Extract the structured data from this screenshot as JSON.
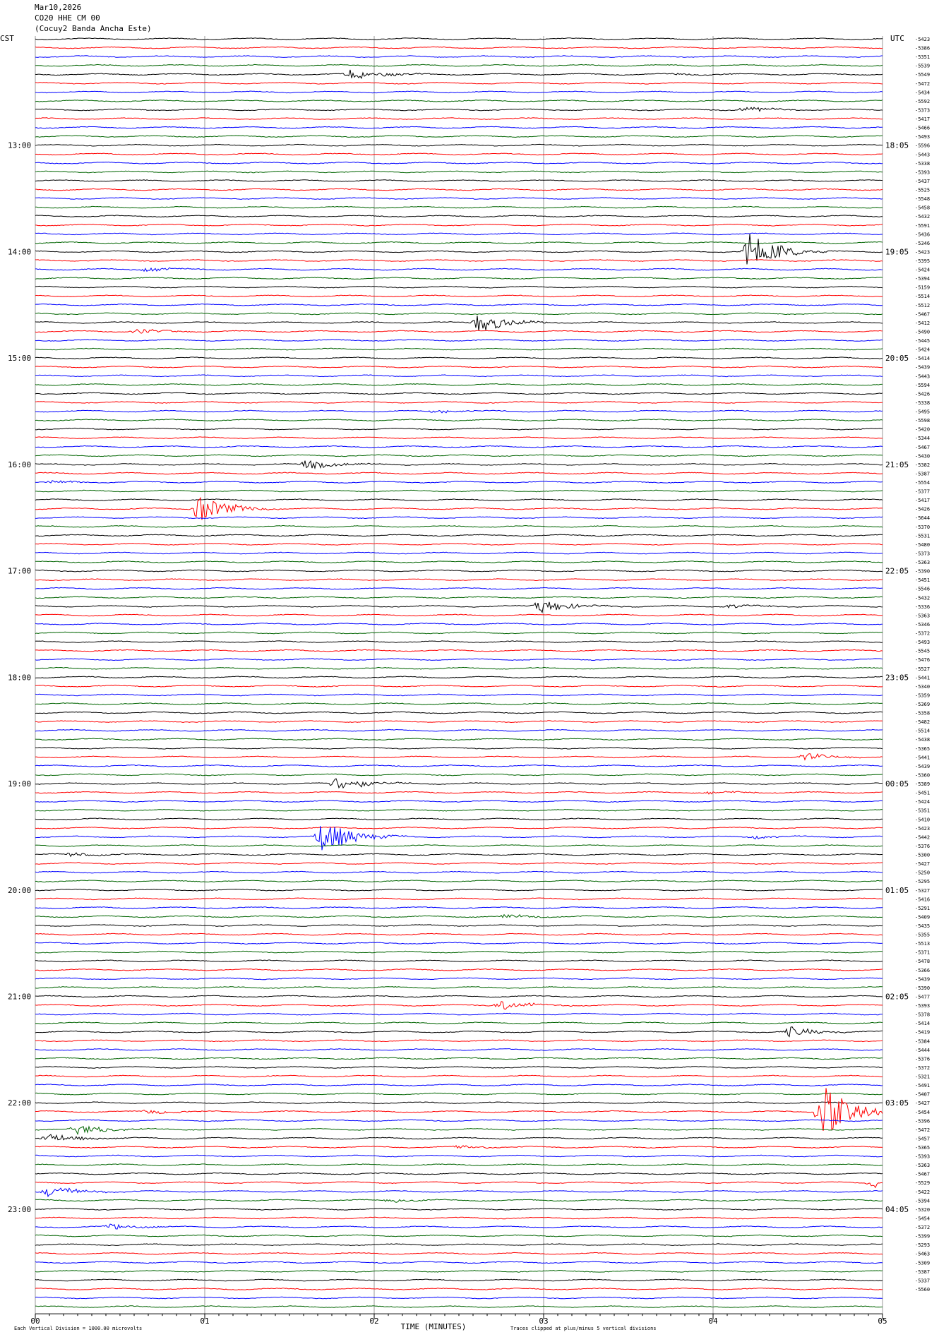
{
  "header": {
    "date": "Mar10,2026",
    "channel": "CO20 HHE CM 00",
    "station": "(Cocuy2 Banda Ancha Este)"
  },
  "footer": {
    "scale_note": "Each Vertical Division = 1000.00 microvolts",
    "xlabel": "TIME (MINUTES)",
    "clip_note": "Traces clipped at plus/minus 5 vertical divisions"
  },
  "chart_data": {
    "type": "line",
    "title": "CO20 HHE CM 00 (Cocuy2 Banda Ancha Este)",
    "xlabel": "TIME (MINUTES)",
    "xlim": [
      0,
      5
    ],
    "x_ticks": [
      "00",
      "01",
      "02",
      "03",
      "04",
      "05"
    ],
    "left_axis_label": "CST",
    "right_axis_label": "UTC",
    "trace_minutes": 5,
    "trace_count": 144,
    "trace_colors": [
      "#000000",
      "#ff0000",
      "#0000ff",
      "#006400"
    ],
    "left_time_labels": [
      {
        "label": "13:00",
        "trace": 12
      },
      {
        "label": "14:00",
        "trace": 24
      },
      {
        "label": "15:00",
        "trace": 36
      },
      {
        "label": "16:00",
        "trace": 48
      },
      {
        "label": "17:00",
        "trace": 60
      },
      {
        "label": "18:00",
        "trace": 72
      },
      {
        "label": "19:00",
        "trace": 84
      },
      {
        "label": "20:00",
        "trace": 96
      },
      {
        "label": "21:00",
        "trace": 108
      },
      {
        "label": "22:00",
        "trace": 120
      },
      {
        "label": "23:00",
        "trace": 132
      }
    ],
    "right_time_labels": [
      {
        "label": "18:05",
        "trace": 12
      },
      {
        "label": "19:05",
        "trace": 24
      },
      {
        "label": "20:05",
        "trace": 36
      },
      {
        "label": "21:05",
        "trace": 48
      },
      {
        "label": "22:05",
        "trace": 60
      },
      {
        "label": "23:05",
        "trace": 72
      },
      {
        "label": "00:05",
        "trace": 84
      },
      {
        "label": "01:05",
        "trace": 96
      },
      {
        "label": "02:05",
        "trace": 108
      },
      {
        "label": "03:05",
        "trace": 120
      },
      {
        "label": "04:05",
        "trace": 132
      }
    ],
    "trace_offsets": [
      "-5423",
      "-5386",
      "-5351",
      "-5539",
      "-5549",
      "-5472",
      "-5434",
      "-5592",
      "-5373",
      "-5417",
      "-5466",
      "-5493",
      "-5596",
      "-5443",
      "-5338",
      "-5393",
      "-5437",
      "-5525",
      "-5548",
      "-5458",
      "-5432",
      "-5591",
      "-5436",
      "-5346",
      "-5423",
      "-5395",
      "-5424",
      "-5394",
      "-5159",
      "-5514",
      "-5512",
      "-5467",
      "-5412",
      "-5490",
      "-5445",
      "-5424",
      "-5414",
      "-5439",
      "-5443",
      "-5594",
      "-5426",
      "-5338",
      "-5495",
      "-5598",
      "-5420",
      "-5344",
      "-5467",
      "-5430",
      "-5382",
      "-5387",
      "-5554",
      "-5377",
      "-5417",
      "-5426",
      "-5644",
      "-5370",
      "-5531",
      "-5480",
      "-5373",
      "-5363",
      "-5390",
      "-5451",
      "-5546",
      "-5432",
      "-5336",
      "-5363",
      "-5346",
      "-5372",
      "-5493",
      "-5545",
      "-5476",
      "-5527",
      "-5441",
      "-5340",
      "-5359",
      "-5369",
      "-5358",
      "-5482",
      "-5514",
      "-5438",
      "-5365",
      "-5441",
      "-5439",
      "-5360",
      "-5389",
      "-5451",
      "-5424",
      "-5351",
      "-5410",
      "-5423",
      "-5442",
      "-5376",
      "-5300",
      "-5427",
      "-5250",
      "-5295",
      "-5327",
      "-5416",
      "-5291",
      "-5409",
      "-5435",
      "-5355",
      "-5513",
      "-5371",
      "-5478",
      "-5366",
      "-5439",
      "-5390",
      "-5477",
      "-5393",
      "-5378",
      "-5414",
      "-5419",
      "-5384",
      "-5444",
      "-5376",
      "-5372",
      "-5321",
      "-5491",
      "-5407",
      "-5427",
      "-5454",
      "-5396",
      "-5472",
      "-5457",
      "-5365",
      "-5393",
      "-5363",
      "-5467",
      "-5529",
      "-5422",
      "-5394",
      "-5320",
      "-5454",
      "-5372",
      "-5399",
      "-5293",
      "-5463",
      "-5309",
      "-5387",
      "-5337",
      "-5560"
    ],
    "events": [
      {
        "trace": 4,
        "minute": 1.87,
        "amp": 0.6
      },
      {
        "trace": 4,
        "minute": 3.8,
        "amp": 0.15
      },
      {
        "trace": 8,
        "minute": 4.18,
        "amp": 0.35
      },
      {
        "trace": 24,
        "minute": 4.22,
        "amp": 2.2
      },
      {
        "trace": 26,
        "minute": 0.67,
        "amp": 0.25
      },
      {
        "trace": 32,
        "minute": 2.62,
        "amp": 1.1
      },
      {
        "trace": 33,
        "minute": 0.6,
        "amp": 0.3
      },
      {
        "trace": 42,
        "minute": 2.35,
        "amp": 0.2
      },
      {
        "trace": 48,
        "minute": 1.6,
        "amp": 0.5
      },
      {
        "trace": 50,
        "minute": 0.1,
        "amp": 0.2
      },
      {
        "trace": 53,
        "minute": 0.97,
        "amp": 1.5
      },
      {
        "trace": 64,
        "minute": 2.98,
        "amp": 0.8
      },
      {
        "trace": 64,
        "minute": 4.1,
        "amp": 0.2
      },
      {
        "trace": 81,
        "minute": 4.55,
        "amp": 0.4
      },
      {
        "trace": 84,
        "minute": 1.78,
        "amp": 0.8
      },
      {
        "trace": 85,
        "minute": 3.98,
        "amp": 0.2
      },
      {
        "trace": 90,
        "minute": 1.7,
        "amp": 1.9
      },
      {
        "trace": 90,
        "minute": 4.25,
        "amp": 0.2
      },
      {
        "trace": 92,
        "minute": 0.22,
        "amp": 0.3
      },
      {
        "trace": 99,
        "minute": 2.78,
        "amp": 0.25
      },
      {
        "trace": 109,
        "minute": 2.75,
        "amp": 0.5
      },
      {
        "trace": 112,
        "minute": 4.45,
        "amp": 0.6
      },
      {
        "trace": 121,
        "minute": 0.66,
        "amp": 0.25
      },
      {
        "trace": 121,
        "minute": 4.65,
        "amp": 3.0
      },
      {
        "trace": 123,
        "minute": 0.25,
        "amp": 0.6
      },
      {
        "trace": 124,
        "minute": 0.08,
        "amp": 0.5
      },
      {
        "trace": 125,
        "minute": 2.5,
        "amp": 0.25
      },
      {
        "trace": 129,
        "minute": 4.95,
        "amp": 0.5
      },
      {
        "trace": 130,
        "minute": 0.08,
        "amp": 0.6
      },
      {
        "trace": 131,
        "minute": 2.1,
        "amp": 0.2
      },
      {
        "trace": 134,
        "minute": 0.45,
        "amp": 0.35
      }
    ]
  }
}
